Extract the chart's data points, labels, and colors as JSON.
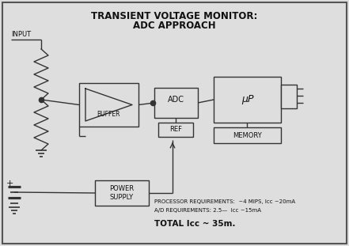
{
  "title_line1": "TRANSIENT VOLTAGE MONITOR:",
  "title_line2": "ADC APPROACH",
  "bg_color": "#dedede",
  "border_color": "#444444",
  "line_color": "#333333",
  "box_color": "#dedede",
  "figsize": [
    4.41,
    3.11
  ],
  "dpi": 100,
  "labels": {
    "input": "INPUT",
    "buffer": "BUFFER",
    "adc": "ADC",
    "ref": "REF",
    "mu_p": "μP",
    "memory": "MEMORY",
    "power_supply": "POWER\nSUPPLY",
    "proc_req": "PROCESSOR REQUIREMENTS:  ~4 MIPS, Iᴄᴄ ~20mA",
    "ad_req": "A/D REQUIREMENTS: 2.5—  Iᴄᴄ ~15mA",
    "total": "TOTAL Iᴄᴄ ~ 35m."
  }
}
